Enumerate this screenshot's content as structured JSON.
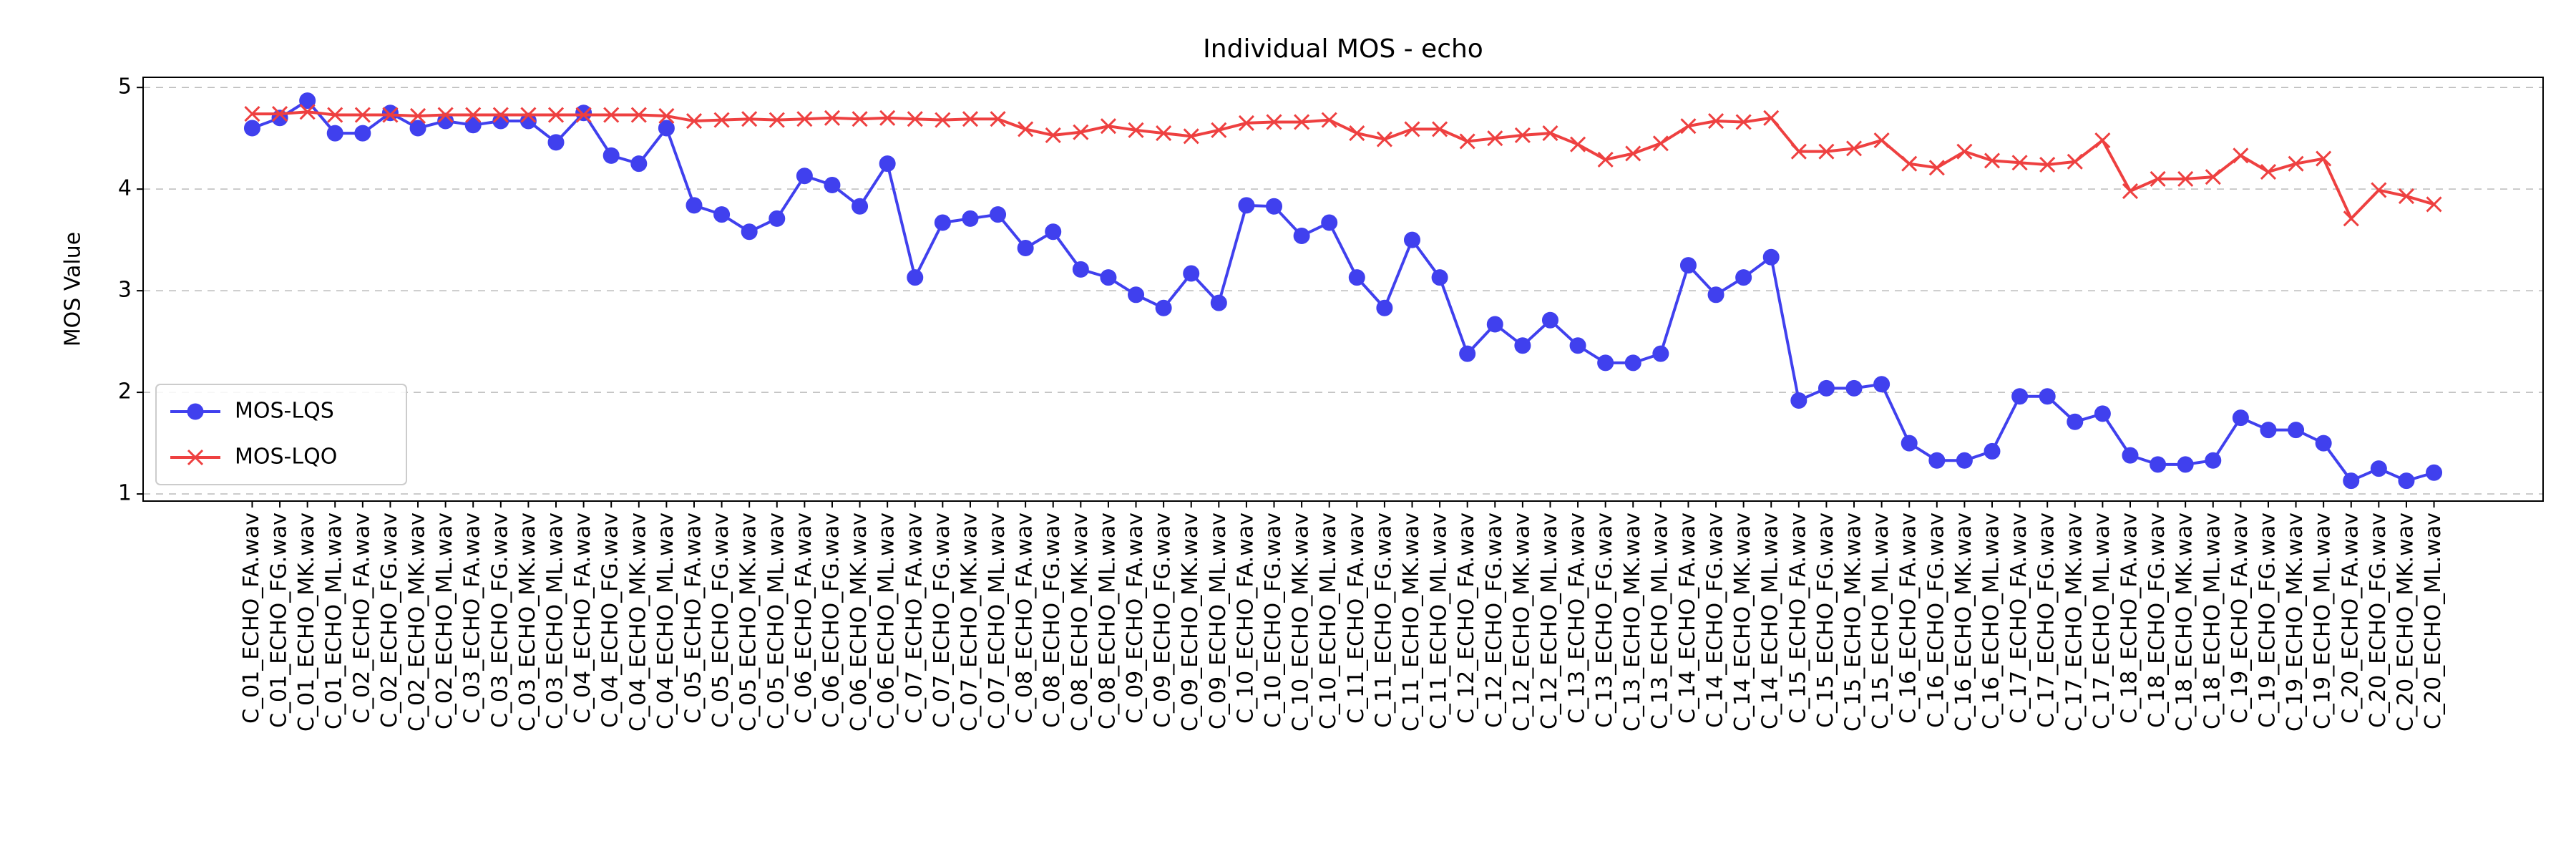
{
  "chart_data": {
    "type": "line",
    "title": "Individual MOS - echo",
    "ylabel": "MOS Value",
    "categories": [
      "C_01_ECHO_FA.wav",
      "C_01_ECHO_FG.wav",
      "C_01_ECHO_MK.wav",
      "C_01_ECHO_ML.wav",
      "C_02_ECHO_FA.wav",
      "C_02_ECHO_FG.wav",
      "C_02_ECHO_MK.wav",
      "C_02_ECHO_ML.wav",
      "C_03_ECHO_FA.wav",
      "C_03_ECHO_FG.wav",
      "C_03_ECHO_MK.wav",
      "C_03_ECHO_ML.wav",
      "C_04_ECHO_FA.wav",
      "C_04_ECHO_FG.wav",
      "C_04_ECHO_MK.wav",
      "C_04_ECHO_ML.wav",
      "C_05_ECHO_FA.wav",
      "C_05_ECHO_FG.wav",
      "C_05_ECHO_MK.wav",
      "C_05_ECHO_ML.wav",
      "C_06_ECHO_FA.wav",
      "C_06_ECHO_FG.wav",
      "C_06_ECHO_MK.wav",
      "C_06_ECHO_ML.wav",
      "C_07_ECHO_FA.wav",
      "C_07_ECHO_FG.wav",
      "C_07_ECHO_MK.wav",
      "C_07_ECHO_ML.wav",
      "C_08_ECHO_FA.wav",
      "C_08_ECHO_FG.wav",
      "C_08_ECHO_MK.wav",
      "C_08_ECHO_ML.wav",
      "C_09_ECHO_FA.wav",
      "C_09_ECHO_FG.wav",
      "C_09_ECHO_MK.wav",
      "C_09_ECHO_ML.wav",
      "C_10_ECHO_FA.wav",
      "C_10_ECHO_FG.wav",
      "C_10_ECHO_MK.wav",
      "C_10_ECHO_ML.wav",
      "C_11_ECHO_FA.wav",
      "C_11_ECHO_FG.wav",
      "C_11_ECHO_MK.wav",
      "C_11_ECHO_ML.wav",
      "C_12_ECHO_FA.wav",
      "C_12_ECHO_FG.wav",
      "C_12_ECHO_MK.wav",
      "C_12_ECHO_ML.wav",
      "C_13_ECHO_FA.wav",
      "C_13_ECHO_FG.wav",
      "C_13_ECHO_MK.wav",
      "C_13_ECHO_ML.wav",
      "C_14_ECHO_FA.wav",
      "C_14_ECHO_FG.wav",
      "C_14_ECHO_MK.wav",
      "C_14_ECHO_ML.wav",
      "C_15_ECHO_FA.wav",
      "C_15_ECHO_FG.wav",
      "C_15_ECHO_MK.wav",
      "C_15_ECHO_ML.wav",
      "C_16_ECHO_FA.wav",
      "C_16_ECHO_FG.wav",
      "C_16_ECHO_MK.wav",
      "C_16_ECHO_ML.wav",
      "C_17_ECHO_FA.wav",
      "C_17_ECHO_FG.wav",
      "C_17_ECHO_MK.wav",
      "C_17_ECHO_ML.wav",
      "C_18_ECHO_FA.wav",
      "C_18_ECHO_FG.wav",
      "C_18_ECHO_MK.wav",
      "C_18_ECHO_ML.wav",
      "C_19_ECHO_FA.wav",
      "C_19_ECHO_FG.wav",
      "C_19_ECHO_MK.wav",
      "C_19_ECHO_ML.wav",
      "C_20_ECHO_FA.wav",
      "C_20_ECHO_FG.wav",
      "C_20_ECHO_MK.wav",
      "C_20_ECHO_ML.wav"
    ],
    "series": [
      {
        "name": "MOS-LQS",
        "color": "#4040ee",
        "marker": "o",
        "values": [
          4.6,
          4.7,
          4.87,
          4.55,
          4.55,
          4.75,
          4.6,
          4.67,
          4.63,
          4.67,
          4.67,
          4.46,
          4.75,
          4.33,
          4.25,
          4.6,
          3.84,
          3.75,
          3.58,
          3.71,
          4.13,
          4.04,
          3.83,
          4.25,
          3.13,
          3.67,
          3.71,
          3.75,
          3.42,
          3.58,
          3.21,
          3.13,
          2.96,
          2.83,
          3.17,
          2.88,
          3.84,
          3.83,
          3.54,
          3.67,
          3.13,
          2.83,
          3.5,
          3.13,
          2.38,
          2.67,
          2.46,
          2.71,
          2.46,
          2.29,
          2.29,
          2.38,
          3.25,
          2.96,
          3.13,
          3.33,
          1.92,
          2.04,
          2.04,
          2.08,
          1.5,
          1.33,
          1.33,
          1.42,
          1.96,
          1.96,
          1.71,
          1.79,
          1.38,
          1.29,
          1.29,
          1.33,
          1.75,
          1.63,
          1.63,
          1.5,
          1.13,
          1.25,
          1.13,
          1.21
        ]
      },
      {
        "name": "MOS-LQO",
        "color": "#ee4040",
        "marker": "x",
        "values": [
          4.74,
          4.74,
          4.76,
          4.73,
          4.73,
          4.73,
          4.72,
          4.73,
          4.73,
          4.73,
          4.73,
          4.73,
          4.73,
          4.73,
          4.73,
          4.72,
          4.67,
          4.68,
          4.69,
          4.68,
          4.69,
          4.7,
          4.69,
          4.7,
          4.69,
          4.68,
          4.69,
          4.69,
          4.59,
          4.53,
          4.56,
          4.62,
          4.58,
          4.55,
          4.52,
          4.58,
          4.65,
          4.66,
          4.66,
          4.68,
          4.55,
          4.49,
          4.59,
          4.59,
          4.47,
          4.5,
          4.53,
          4.55,
          4.44,
          4.29,
          4.35,
          4.45,
          4.62,
          4.67,
          4.66,
          4.7,
          4.37,
          4.37,
          4.4,
          4.48,
          4.25,
          4.21,
          4.37,
          4.28,
          4.26,
          4.24,
          4.27,
          4.48,
          3.98,
          4.1,
          4.1,
          4.12,
          4.33,
          4.17,
          4.25,
          4.3,
          3.71,
          3.99,
          3.93,
          3.85
        ]
      }
    ],
    "ylim": [
      0.93,
      5.1
    ],
    "yticks": [
      1,
      2,
      3,
      4,
      5
    ],
    "grid": true,
    "legend": "lower left"
  }
}
